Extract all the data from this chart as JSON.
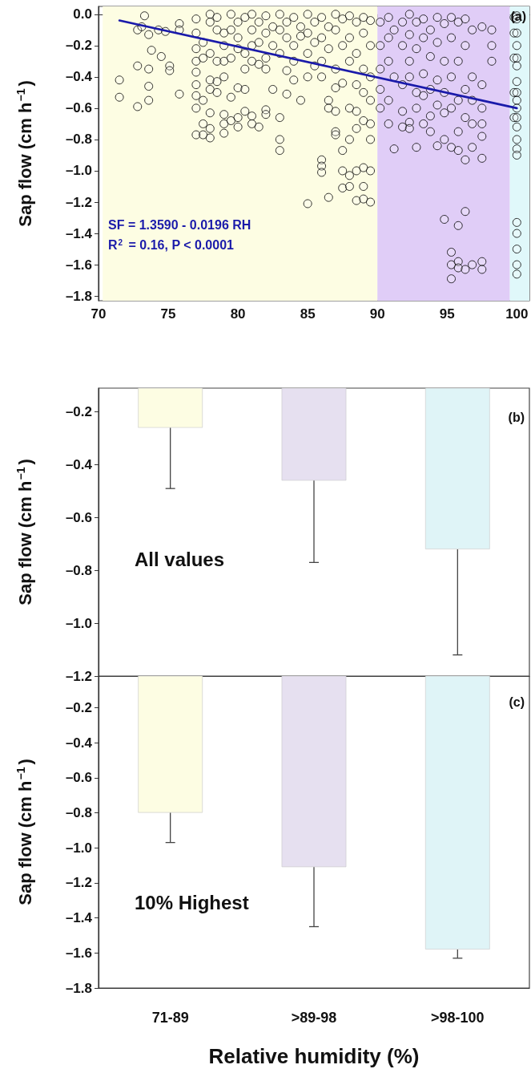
{
  "chart_data": [
    {
      "type": "scatter",
      "ylabel": "Sap flow (cm h$^{−1}$)",
      "annotations": [
        "(a)",
        "SF = 1.3590 - 0.0196 RH",
        "R$^{2}$ = 0.16, P < 0.0001"
      ],
      "xlim": [
        70,
        100.9
      ],
      "xticks": [
        70,
        75,
        80,
        85,
        90,
        95,
        100
      ],
      "ylim": [
        -1.83,
        0.05
      ],
      "yticks": [
        {
          "value": 0,
          "label": "0.0"
        },
        {
          "value": -0.2,
          "label": "–0.2"
        },
        {
          "value": -0.4,
          "label": "–0.4"
        },
        {
          "value": -0.6,
          "label": "–0.6"
        },
        {
          "value": -0.8,
          "label": "–0.8"
        },
        {
          "value": -1.0,
          "label": "–1.0"
        },
        {
          "value": -1.2,
          "label": "–1.2"
        },
        {
          "value": -1.4,
          "label": "–1.4"
        },
        {
          "value": -1.6,
          "label": "–1.6"
        },
        {
          "value": -1.8,
          "label": "–1.8"
        }
      ],
      "bands": [
        {
          "axis": "x",
          "from": 70.3,
          "to": 90,
          "color": "#fdfde3"
        },
        {
          "axis": "x",
          "from": 90,
          "to": 99.5,
          "color": "#e0cdf7"
        },
        {
          "axis": "x",
          "from": 99.5,
          "to": 100.9,
          "color": "#e0f8fa"
        }
      ],
      "series": [
        {
          "marker": "circle",
          "color": "#000000",
          "x": [
            71.5,
            71.5,
            72.8,
            72.8,
            72.8,
            73.3,
            73.1,
            73.6,
            73.6,
            73.6,
            73.6,
            73.8,
            74.3,
            74.5,
            74.8,
            75.1,
            75.1,
            75.8,
            75.8,
            75.8,
            77,
            77,
            77,
            77,
            77,
            77,
            77,
            77,
            77,
            77.5,
            77.5,
            77.5,
            77.5,
            77.5,
            78,
            78,
            78,
            78,
            78,
            78,
            78,
            78,
            78.5,
            78.5,
            78.5,
            78.5,
            78.5,
            79,
            79,
            79,
            79,
            79,
            79,
            79,
            79.5,
            79.5,
            79.5,
            79.5,
            79.5,
            80,
            80,
            80,
            80,
            80,
            80,
            80.5,
            80.5,
            80.5,
            80.5,
            80.5,
            81,
            81,
            81,
            81,
            81,
            81,
            81.5,
            81.5,
            81.5,
            81.5,
            82,
            82,
            82,
            82,
            82,
            82,
            82.5,
            82.5,
            82.5,
            83,
            83,
            83,
            83,
            83,
            83,
            83.5,
            83.5,
            83.5,
            83.5,
            84,
            84,
            84,
            84,
            84.5,
            84.5,
            84.5,
            85,
            85,
            85,
            85,
            85,
            85.5,
            85.5,
            85.5,
            86,
            86,
            86,
            86,
            86,
            86,
            86,
            86.5,
            86.5,
            86.5,
            86.5,
            86.5,
            87,
            87,
            87,
            87,
            87,
            87,
            87,
            87.5,
            87.5,
            87.5,
            87.5,
            87.5,
            87.5,
            88,
            88,
            88,
            88,
            88,
            88,
            88,
            88.5,
            88.5,
            88.5,
            88.5,
            88.5,
            88.5,
            88.5,
            89,
            89,
            89,
            89,
            89,
            89,
            89,
            89,
            89.5,
            89.5,
            89.5,
            89.5,
            89.5,
            89.5,
            89.5,
            89.5,
            90.2,
            90.2,
            90.2,
            90.2,
            90.2,
            90.8,
            90.8,
            90.8,
            90.8,
            90.8,
            91.2,
            91.2,
            91.2,
            91.8,
            91.8,
            91.8,
            91.8,
            91.8,
            92.3,
            92.3,
            92.3,
            92.3,
            92.3,
            92.3,
            92.8,
            92.8,
            92.8,
            92.8,
            92.8,
            93.3,
            93.3,
            93.3,
            93.3,
            93.3,
            93.8,
            93.8,
            93.8,
            93.8,
            93.8,
            94.3,
            94.3,
            94.3,
            94.3,
            94.3,
            94.8,
            94.8,
            94.8,
            94.8,
            94.8,
            94.8,
            95.3,
            95.3,
            95.3,
            95.3,
            95.3,
            95.3,
            95.3,
            95.3,
            95.8,
            95.8,
            95.8,
            95.8,
            95.8,
            95.8,
            95.8,
            95.8,
            96.3,
            96.3,
            96.3,
            96.3,
            96.3,
            96.3,
            96.3,
            96.8,
            96.8,
            96.8,
            96.8,
            96.8,
            96.8,
            97.5,
            97.5,
            97.5,
            97.5,
            97.5,
            97.5,
            97.5,
            97.5,
            98.2,
            98.2,
            98.2,
            99.8,
            99.8,
            99.8,
            99.8,
            99.8,
            100,
            100,
            100,
            100,
            100,
            100,
            100,
            100,
            100,
            100,
            100,
            100,
            100,
            100,
            100,
            100,
            100,
            100,
            100,
            100
          ],
          "values": [
            -0.42,
            -0.53,
            -0.1,
            -0.33,
            -0.59,
            -0.01,
            -0.08,
            -0.13,
            -0.35,
            -0.46,
            -0.55,
            -0.23,
            -0.1,
            -0.27,
            -0.11,
            -0.33,
            -0.36,
            -0.51,
            -0.06,
            -0.1,
            -0.03,
            -0.12,
            -0.22,
            -0.3,
            -0.37,
            -0.45,
            -0.52,
            -0.6,
            -0.77,
            -0.18,
            -0.28,
            -0.55,
            -0.7,
            -0.77,
            0,
            -0.05,
            -0.25,
            -0.42,
            -0.48,
            -0.63,
            -0.73,
            -0.79,
            -0.02,
            -0.1,
            -0.3,
            -0.43,
            -0.5,
            -0.12,
            -0.2,
            -0.3,
            -0.4,
            -0.64,
            -0.7,
            -0.76,
            0,
            -0.1,
            -0.28,
            -0.53,
            -0.68,
            -0.05,
            -0.15,
            -0.22,
            -0.47,
            -0.66,
            -0.72,
            -0.02,
            -0.25,
            -0.35,
            -0.48,
            -0.62,
            0,
            -0.1,
            -0.2,
            -0.3,
            -0.65,
            -0.7,
            -0.05,
            -0.18,
            -0.32,
            -0.72,
            -0.01,
            -0.12,
            -0.28,
            -0.35,
            -0.61,
            -0.64,
            -0.08,
            -0.2,
            -0.48,
            0,
            -0.1,
            -0.25,
            -0.66,
            -0.8,
            -0.87,
            -0.05,
            -0.15,
            -0.36,
            -0.51,
            -0.02,
            -0.2,
            -0.3,
            -0.42,
            -0.08,
            -0.14,
            -0.55,
            0,
            -0.12,
            -0.25,
            -0.4,
            -1.21,
            -0.05,
            -0.18,
            -0.33,
            -0.02,
            -0.15,
            -0.3,
            -0.4,
            -0.93,
            -0.97,
            -1.01,
            -0.08,
            -0.22,
            -0.55,
            -0.6,
            -1.17,
            0,
            -0.1,
            -0.35,
            -0.47,
            -0.62,
            -0.75,
            -0.77,
            -0.03,
            -0.2,
            -0.44,
            -0.87,
            -1.0,
            -1.11,
            -0.01,
            -0.15,
            -0.3,
            -0.6,
            -0.8,
            -1.03,
            -1.1,
            -0.05,
            -0.25,
            -0.45,
            -0.62,
            -0.73,
            -1.0,
            -1.19,
            -0.02,
            -0.12,
            -0.35,
            -0.5,
            -0.68,
            -0.98,
            -1.1,
            -1.18,
            -0.04,
            -0.2,
            -0.4,
            -0.55,
            -0.7,
            -0.8,
            -1.0,
            -1.2,
            -0.05,
            -0.2,
            -0.35,
            -0.48,
            -0.6,
            -0.02,
            -0.15,
            -0.3,
            -0.55,
            -0.7,
            -0.1,
            -0.4,
            -0.86,
            -0.05,
            -0.2,
            -0.45,
            -0.62,
            -0.72,
            0,
            -0.13,
            -0.3,
            -0.4,
            -0.69,
            -0.73,
            -0.05,
            -0.22,
            -0.5,
            -0.6,
            -0.85,
            -0.03,
            -0.15,
            -0.38,
            -0.52,
            -0.7,
            -0.1,
            -0.27,
            -0.48,
            -0.65,
            -0.75,
            -0.02,
            -0.18,
            -0.42,
            -0.58,
            -0.84,
            -0.06,
            -0.3,
            -0.5,
            -0.63,
            -0.8,
            -1.31,
            -0.02,
            -0.15,
            -0.4,
            -0.6,
            -0.85,
            -1.52,
            -1.6,
            -1.69,
            -0.05,
            -0.3,
            -0.55,
            -0.75,
            -0.87,
            -1.35,
            -1.58,
            -1.62,
            -0.03,
            -0.2,
            -0.48,
            -0.66,
            -0.93,
            -1.26,
            -1.63,
            -0.1,
            -0.4,
            -0.55,
            -0.7,
            -0.85,
            -1.6,
            -0.08,
            -0.45,
            -0.6,
            -0.7,
            -0.78,
            -0.92,
            -1.58,
            -1.63,
            -0.1,
            -0.2,
            -0.3,
            -0.02,
            -0.12,
            -0.28,
            -0.5,
            -0.66,
            -0.01,
            -0.03,
            -0.12,
            -0.2,
            -0.28,
            -0.33,
            -0.43,
            -0.5,
            -0.55,
            -0.6,
            -0.66,
            -0.72,
            -0.8,
            -0.86,
            -0.9,
            -1.33,
            -1.4,
            -1.5,
            -1.6,
            -1.66
          ]
        },
        {
          "type": "line",
          "color": "#1a1aaa",
          "x": [
            71.5,
            100
          ],
          "values": [
            -0.04,
            -0.6
          ]
        }
      ]
    },
    {
      "type": "bar",
      "categories": [
        null,
        null,
        null
      ],
      "values": [
        -0.26,
        -0.46,
        -0.72
      ],
      "colors": [
        "#fdfde3",
        "#e6e0f0",
        "#dff4f7"
      ],
      "errors": [
        [
          -0.49,
          -0.26
        ],
        [
          -0.77,
          -0.46
        ],
        [
          -1.12,
          -0.72
        ]
      ],
      "ylabel": "Sap flow (cm h$^{−1}$)",
      "ylim": [
        -1.2,
        -0.11
      ],
      "yticks": [
        {
          "value": -0.2,
          "label": "–0.2"
        },
        {
          "value": -0.4,
          "label": "–0.4"
        },
        {
          "value": -0.6,
          "label": "–0.6"
        },
        {
          "value": -0.8,
          "label": "–0.8"
        },
        {
          "value": -1.0,
          "label": "–1.0"
        },
        {
          "value": -1.2,
          "label": "–1.2"
        }
      ],
      "tick_labels": "y",
      "annotations": [
        "(b)",
        "All values"
      ]
    },
    {
      "type": "bar",
      "categories": [
        "71-89",
        ">89-98",
        ">98-100"
      ],
      "values": [
        -0.8,
        -1.11,
        -1.58
      ],
      "colors": [
        "#fdfde3",
        "#e6e0f0",
        "#dff4f7"
      ],
      "errors": [
        [
          -0.97,
          -0.8
        ],
        [
          -1.45,
          -1.11
        ],
        [
          -1.63,
          -1.58
        ]
      ],
      "ylabel": "Sap flow (cm h$^{−1}$)",
      "xlabel": "Relative humidity (%)",
      "ylim": [
        -1.8,
        -0.02
      ],
      "yticks": [
        {
          "value": -0.2,
          "label": "–0.2"
        },
        {
          "value": -0.4,
          "label": "–0.4"
        },
        {
          "value": -0.6,
          "label": "–0.6"
        },
        {
          "value": -0.8,
          "label": "–0.8"
        },
        {
          "value": -1.0,
          "label": "–1.0"
        },
        {
          "value": -1.2,
          "label": "–1.2"
        },
        {
          "value": -1.4,
          "label": "–1.4"
        },
        {
          "value": -1.6,
          "label": "–1.6"
        },
        {
          "value": -1.8,
          "label": "–1.8"
        }
      ],
      "annotations": [
        "(c)",
        "10% Highest"
      ]
    }
  ]
}
